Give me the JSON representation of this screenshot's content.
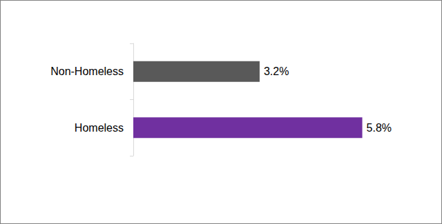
{
  "chart_data": {
    "type": "bar",
    "orientation": "horizontal",
    "categories": [
      "Non-Homeless",
      "Homeless"
    ],
    "values": [
      3.2,
      5.8
    ],
    "value_labels": [
      "3.2%",
      "5.8%"
    ],
    "colors": [
      "#595959",
      "#7030a0"
    ],
    "data_labels": true,
    "tick_labels": "y",
    "grid": false
  }
}
